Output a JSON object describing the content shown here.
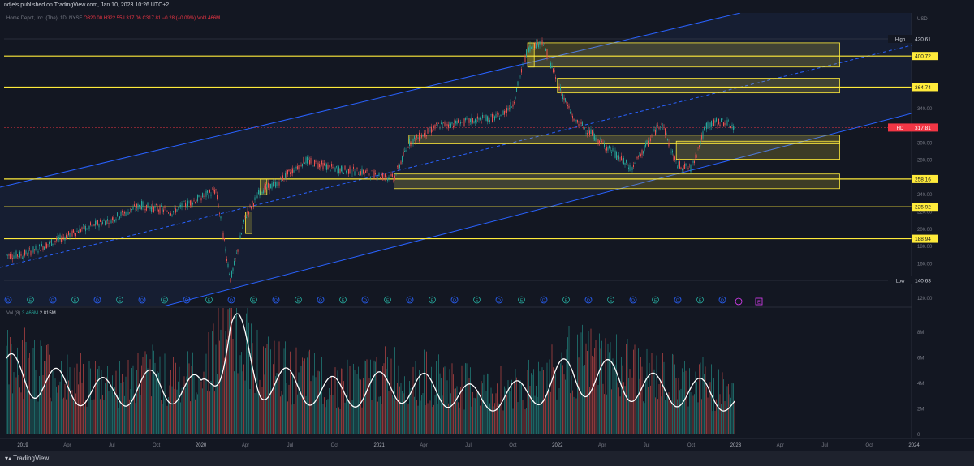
{
  "header": {
    "publisher": "ndjels published on TradingView.com, Jan 10, 2023 10:26 UTC+2"
  },
  "legend": {
    "symbol": "Home Depot, Inc. (The), 1D, NYSE",
    "ohlc": "O320.00 H322.55 L317.06 C317.81 −0.28 (−0.09%) Vol3.466M"
  },
  "volume_legend": {
    "label": "Vol (8)",
    "v1": "3.466M",
    "v2": "2.815M"
  },
  "footer": {
    "logo": "TradingView"
  },
  "colors": {
    "background": "#131722",
    "level_line": "#ffeb3b",
    "channel": "#2962ff",
    "up": "#26a69a",
    "down": "#ef5350",
    "ma": "#ffffff"
  },
  "chart_data": {
    "type": "candlestick",
    "currency_label": "USD",
    "y_ticks": [
      "420.61",
      "400.72",
      "364.74",
      "340.00",
      "320.00",
      "317.81",
      "300.00",
      "280.00",
      "258.16",
      "240.00",
      "225.92",
      "220.00",
      "200.00",
      "188.94",
      "180.00",
      "160.00",
      "140.63",
      "120.00"
    ],
    "y_axis_ticks": [
      340,
      320,
      300,
      280,
      260,
      240,
      220,
      200,
      180,
      160,
      140,
      120
    ],
    "x_ticks": [
      "2019",
      "Apr",
      "Jul",
      "Oct",
      "2020",
      "Apr",
      "Jul",
      "Oct",
      "2021",
      "Apr",
      "Jul",
      "Oct",
      "2022",
      "Apr",
      "Jul",
      "Oct",
      "2023",
      "Apr",
      "Jul",
      "Oct",
      "2024"
    ],
    "horizontal_levels": [
      {
        "value": 400.72,
        "label": "400.72"
      },
      {
        "value": 364.74,
        "label": "364.74"
      },
      {
        "value": 258.16,
        "label": "258.16"
      },
      {
        "value": 225.92,
        "label": "225.92"
      },
      {
        "value": 188.94,
        "label": "188.94"
      }
    ],
    "high_label": {
      "text": "High",
      "value": "420.61"
    },
    "low_label": {
      "text": "Low",
      "value": "140.63"
    },
    "last_price": {
      "symbol": "HD",
      "value": "317.81"
    },
    "price_path": [
      [
        "2019-01",
        170
      ],
      [
        "2019-03",
        185
      ],
      [
        "2019-05",
        200
      ],
      [
        "2019-07",
        212
      ],
      [
        "2019-09",
        228
      ],
      [
        "2019-11",
        220
      ],
      [
        "2020-01",
        237
      ],
      [
        "2020-02",
        245
      ],
      [
        "2020-03",
        141
      ],
      [
        "2020-04",
        215
      ],
      [
        "2020-05",
        245
      ],
      [
        "2020-06",
        252
      ],
      [
        "2020-08",
        280
      ],
      [
        "2020-10",
        270
      ],
      [
        "2020-12",
        266
      ],
      [
        "2021-02",
        259
      ],
      [
        "2021-03",
        300
      ],
      [
        "2021-05",
        320
      ],
      [
        "2021-07",
        325
      ],
      [
        "2021-09",
        330
      ],
      [
        "2021-10",
        345
      ],
      [
        "2021-11",
        410
      ],
      [
        "2021-12",
        418
      ],
      [
        "2022-01",
        370
      ],
      [
        "2022-02",
        330
      ],
      [
        "2022-04",
        300
      ],
      [
        "2022-06",
        270
      ],
      [
        "2022-08",
        325
      ],
      [
        "2022-09",
        275
      ],
      [
        "2022-10",
        270
      ],
      [
        "2022-11",
        320
      ],
      [
        "2022-12",
        325
      ],
      [
        "2023-01",
        318
      ]
    ],
    "volume_axis_ticks": [
      "8M",
      "6M",
      "4M",
      "2M",
      "0"
    ],
    "volume_ma_path": [
      [
        "2019-01",
        5.5
      ],
      [
        "2019-04",
        4.2
      ],
      [
        "2019-07",
        3.8
      ],
      [
        "2019-10",
        4.5
      ],
      [
        "2020-01",
        4.0
      ],
      [
        "2020-03",
        9.5
      ],
      [
        "2020-05",
        5.0
      ],
      [
        "2020-08",
        4.2
      ],
      [
        "2020-11",
        3.8
      ],
      [
        "2021-02",
        4.5
      ],
      [
        "2021-05",
        4.0
      ],
      [
        "2021-08",
        3.2
      ],
      [
        "2021-11",
        3.8
      ],
      [
        "2022-02",
        5.5
      ],
      [
        "2022-05",
        5.0
      ],
      [
        "2022-08",
        4.0
      ],
      [
        "2022-11",
        3.8
      ],
      [
        "2023-01",
        3.0
      ]
    ],
    "events_row": [
      "D",
      "E",
      "D",
      "E",
      "D",
      "E",
      "D",
      "E",
      "D",
      "E",
      "D",
      "E",
      "D",
      "E",
      "D",
      "E",
      "D",
      "E",
      "D",
      "E",
      "D",
      "E",
      "D",
      "E",
      "D",
      "E",
      "D",
      "E",
      "D",
      "E",
      "D",
      "E",
      "D"
    ]
  }
}
